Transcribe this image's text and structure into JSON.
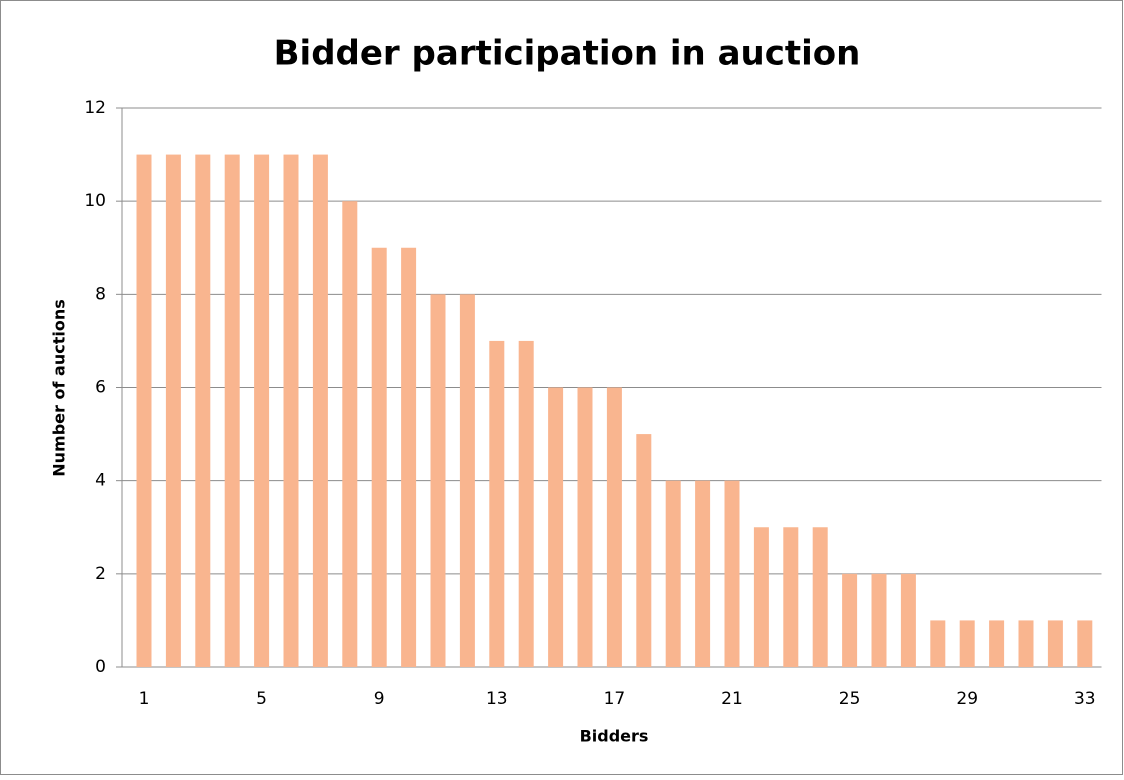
{
  "chart_data": {
    "type": "bar",
    "title": "Bidder participation in auction",
    "x_label": "Bidders",
    "y_label": "Number of auctions",
    "categories": [
      "1",
      null,
      null,
      null,
      "5",
      null,
      null,
      null,
      "9",
      null,
      null,
      null,
      "13",
      null,
      null,
      null,
      "17",
      null,
      null,
      null,
      "21",
      null,
      null,
      null,
      "25",
      null,
      null,
      null,
      "29",
      null,
      null,
      null,
      "33"
    ],
    "values": [
      11,
      11,
      11,
      11,
      11,
      11,
      11,
      10,
      9,
      9,
      8,
      8,
      7,
      7,
      6,
      6,
      6,
      5,
      4,
      4,
      4,
      3,
      3,
      3,
      2,
      2,
      2,
      1,
      1,
      1,
      1,
      1,
      1
    ],
    "color": "#f9b58f",
    "ylim": [
      0,
      12
    ],
    "yticks": [
      0,
      2,
      4,
      6,
      8,
      10,
      12
    ],
    "grid": true
  }
}
